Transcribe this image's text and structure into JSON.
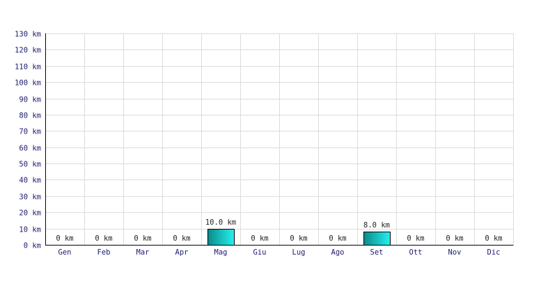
{
  "chart_data": {
    "type": "bar",
    "title": "",
    "xlabel": "",
    "ylabel": "",
    "unit": "km",
    "categories": [
      "Gen",
      "Feb",
      "Mar",
      "Apr",
      "Mag",
      "Giu",
      "Lug",
      "Ago",
      "Set",
      "Ott",
      "Nov",
      "Dic"
    ],
    "values": [
      0,
      0,
      0,
      0,
      10,
      0,
      0,
      0,
      8,
      0,
      0,
      0
    ],
    "data_labels": [
      "0 km",
      "0 km",
      "0 km",
      "0 km",
      "10.0 km",
      "0 km",
      "0 km",
      "0 km",
      "8.0 km",
      "0 km",
      "0 km",
      "0 km"
    ],
    "ylim": [
      0,
      130
    ],
    "y_ticks": [
      0,
      10,
      20,
      30,
      40,
      50,
      60,
      70,
      80,
      90,
      100,
      110,
      120,
      130
    ],
    "y_tick_labels": [
      "0 km",
      "10 km",
      "20 km",
      "30 km",
      "40 km",
      "50 km",
      "60 km",
      "70 km",
      "80 km",
      "90 km",
      "100 km",
      "110 km",
      "120 km",
      "130 km"
    ],
    "grid": true,
    "legend": "none",
    "colors": {
      "bar_dark": "#0b8a8a",
      "bar_light": "#27f0f0",
      "bar_stroke": "#000000",
      "grid": "#dcdcdc",
      "axis": "#000000",
      "tick_text": "#1a1a6e",
      "label_text": "#222222"
    }
  }
}
